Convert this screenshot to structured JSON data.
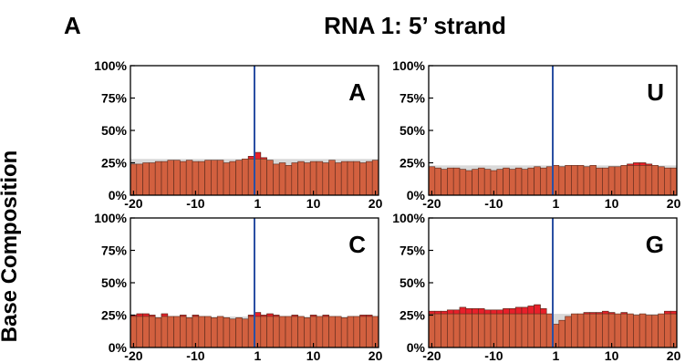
{
  "panel_label": "A",
  "title": "RNA 1: 5’ strand",
  "ylabel": "Base Composition",
  "colors": {
    "bar": "#d2603f",
    "bar_enriched": "#e8202a",
    "baseline": "#d9d9d9",
    "cut_line": "#2a4fa3",
    "axis": "#000000"
  },
  "chart_data": [
    {
      "type": "bar",
      "label": "A",
      "xlim": [
        -20,
        20
      ],
      "ylim": [
        0,
        100
      ],
      "xticks": [
        -20,
        -10,
        1,
        10,
        20
      ],
      "yticks": [
        "0%",
        "25%",
        "50%",
        "75%",
        "100%"
      ],
      "cut_position": 1,
      "baseline": 28,
      "positions": [
        -20,
        -19,
        -18,
        -17,
        -16,
        -15,
        -14,
        -13,
        -12,
        -11,
        -10,
        -9,
        -8,
        -7,
        -6,
        -5,
        -4,
        -3,
        -2,
        -1,
        1,
        2,
        3,
        4,
        5,
        6,
        7,
        8,
        9,
        10,
        11,
        12,
        13,
        14,
        15,
        16,
        17,
        18,
        19,
        20
      ],
      "values": [
        24,
        24,
        25,
        25,
        26,
        26,
        27,
        27,
        26,
        27,
        26,
        26,
        27,
        27,
        27,
        25,
        26,
        27,
        28,
        30,
        33,
        29,
        27,
        24,
        25,
        23,
        25,
        26,
        25,
        26,
        26,
        25,
        27,
        25,
        26,
        26,
        26,
        25,
        26,
        27
      ]
    },
    {
      "type": "bar",
      "label": "U",
      "xlim": [
        -20,
        20
      ],
      "ylim": [
        0,
        100
      ],
      "xticks": [
        -20,
        -10,
        1,
        10,
        20
      ],
      "yticks": [
        "0%",
        "25%",
        "50%",
        "75%",
        "100%"
      ],
      "cut_position": 1,
      "baseline": 23,
      "positions": [
        -20,
        -19,
        -18,
        -17,
        -16,
        -15,
        -14,
        -13,
        -12,
        -11,
        -10,
        -9,
        -8,
        -7,
        -6,
        -5,
        -4,
        -3,
        -2,
        -1,
        1,
        2,
        3,
        4,
        5,
        6,
        7,
        8,
        9,
        10,
        11,
        12,
        13,
        14,
        15,
        16,
        17,
        18,
        19,
        20
      ],
      "values": [
        22,
        21,
        20,
        21,
        21,
        20,
        19,
        20,
        21,
        20,
        19,
        20,
        21,
        20,
        21,
        20,
        21,
        22,
        21,
        22,
        23,
        22,
        23,
        23,
        23,
        22,
        23,
        21,
        21,
        22,
        22,
        23,
        24,
        25,
        25,
        24,
        23,
        22,
        21,
        21
      ]
    },
    {
      "type": "bar",
      "label": "C",
      "xlim": [
        -20,
        20
      ],
      "ylim": [
        0,
        100
      ],
      "xticks": [
        -20,
        -10,
        1,
        10,
        20
      ],
      "yticks": [
        "0%",
        "25%",
        "50%",
        "75%",
        "100%"
      ],
      "cut_position": 1,
      "baseline": 24,
      "positions": [
        -20,
        -19,
        -18,
        -17,
        -16,
        -15,
        -14,
        -13,
        -12,
        -11,
        -10,
        -9,
        -8,
        -7,
        -6,
        -5,
        -4,
        -3,
        -2,
        -1,
        1,
        2,
        3,
        4,
        5,
        6,
        7,
        8,
        9,
        10,
        11,
        12,
        13,
        14,
        15,
        16,
        17,
        18,
        19,
        20
      ],
      "values": [
        25,
        26,
        26,
        25,
        23,
        26,
        24,
        24,
        25,
        23,
        25,
        24,
        24,
        23,
        24,
        23,
        22,
        23,
        22,
        25,
        27,
        25,
        26,
        25,
        24,
        24,
        25,
        24,
        23,
        25,
        24,
        25,
        24,
        24,
        23,
        24,
        24,
        25,
        25,
        24
      ]
    },
    {
      "type": "bar",
      "label": "G",
      "xlim": [
        -20,
        20
      ],
      "ylim": [
        0,
        100
      ],
      "xticks": [
        -20,
        -10,
        1,
        10,
        20
      ],
      "yticks": [
        "0%",
        "25%",
        "50%",
        "75%",
        "100%"
      ],
      "cut_position": 1,
      "baseline": 26,
      "positions": [
        -20,
        -19,
        -18,
        -17,
        -16,
        -15,
        -14,
        -13,
        -12,
        -11,
        -10,
        -9,
        -8,
        -7,
        -6,
        -5,
        -4,
        -3,
        -2,
        -1,
        1,
        2,
        3,
        4,
        5,
        6,
        7,
        8,
        9,
        10,
        11,
        12,
        13,
        14,
        15,
        16,
        17,
        18,
        19,
        20
      ],
      "values": [
        28,
        28,
        28,
        29,
        29,
        31,
        30,
        30,
        30,
        29,
        29,
        29,
        30,
        30,
        31,
        31,
        32,
        33,
        30,
        26,
        18,
        21,
        24,
        26,
        26,
        27,
        27,
        27,
        28,
        27,
        26,
        27,
        26,
        25,
        26,
        25,
        25,
        26,
        28,
        28
      ]
    }
  ]
}
